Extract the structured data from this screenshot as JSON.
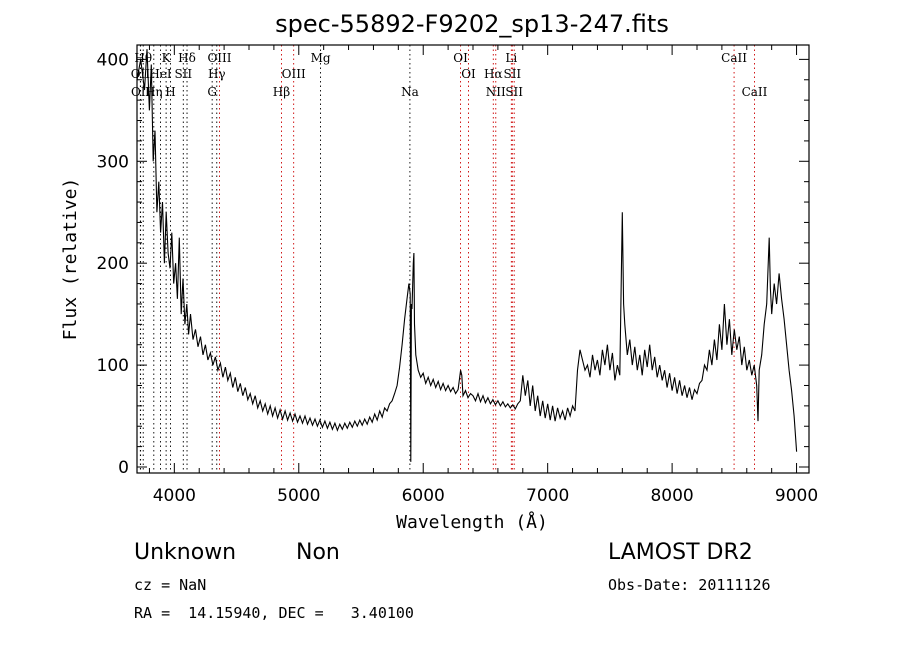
{
  "chart_data": {
    "type": "line",
    "title": "spec-55892-F9202_sp13-247.fits",
    "xlabel": "Wavelength (Å)",
    "ylabel": "Flux (relative)",
    "xlim": [
      3700,
      9100
    ],
    "ylim": [
      0,
      420
    ],
    "xticks": [
      4000,
      5000,
      6000,
      7000,
      8000,
      9000
    ],
    "yticks": [
      0,
      100,
      200,
      300,
      400
    ],
    "grid": false,
    "series": [
      {
        "values_format": "wavelength (Angstrom), relative flux",
        "points": [
          [
            3700,
            380
          ],
          [
            3730,
            400
          ],
          [
            3760,
            370
          ],
          [
            3780,
            410
          ],
          [
            3800,
            350
          ],
          [
            3815,
            395
          ],
          [
            3830,
            300
          ],
          [
            3845,
            330
          ],
          [
            3860,
            250
          ],
          [
            3875,
            280
          ],
          [
            3890,
            230
          ],
          [
            3905,
            260
          ],
          [
            3920,
            200
          ],
          [
            3935,
            250
          ],
          [
            3950,
            210
          ],
          [
            3965,
            195
          ],
          [
            3980,
            230
          ],
          [
            3995,
            180
          ],
          [
            4010,
            200
          ],
          [
            4025,
            165
          ],
          [
            4040,
            225
          ],
          [
            4055,
            150
          ],
          [
            4070,
            185
          ],
          [
            4085,
            140
          ],
          [
            4100,
            160
          ],
          [
            4115,
            130
          ],
          [
            4130,
            150
          ],
          [
            4150,
            125
          ],
          [
            4170,
            135
          ],
          [
            4190,
            118
          ],
          [
            4210,
            128
          ],
          [
            4230,
            110
          ],
          [
            4250,
            120
          ],
          [
            4270,
            105
          ],
          [
            4290,
            112
          ],
          [
            4310,
            100
          ],
          [
            4330,
            108
          ],
          [
            4350,
            95
          ],
          [
            4370,
            102
          ],
          [
            4390,
            88
          ],
          [
            4410,
            98
          ],
          [
            4430,
            85
          ],
          [
            4450,
            92
          ],
          [
            4470,
            78
          ],
          [
            4490,
            88
          ],
          [
            4510,
            74
          ],
          [
            4530,
            82
          ],
          [
            4550,
            70
          ],
          [
            4570,
            78
          ],
          [
            4590,
            66
          ],
          [
            4610,
            72
          ],
          [
            4630,
            62
          ],
          [
            4650,
            70
          ],
          [
            4670,
            58
          ],
          [
            4690,
            65
          ],
          [
            4710,
            55
          ],
          [
            4730,
            62
          ],
          [
            4750,
            52
          ],
          [
            4770,
            60
          ],
          [
            4790,
            50
          ],
          [
            4810,
            58
          ],
          [
            4830,
            48
          ],
          [
            4850,
            56
          ],
          [
            4870,
            47
          ],
          [
            4890,
            55
          ],
          [
            4910,
            46
          ],
          [
            4930,
            53
          ],
          [
            4950,
            45
          ],
          [
            4970,
            52
          ],
          [
            4990,
            44
          ],
          [
            5010,
            50
          ],
          [
            5030,
            43
          ],
          [
            5050,
            50
          ],
          [
            5070,
            42
          ],
          [
            5090,
            48
          ],
          [
            5110,
            41
          ],
          [
            5130,
            47
          ],
          [
            5150,
            40
          ],
          [
            5170,
            46
          ],
          [
            5190,
            39
          ],
          [
            5210,
            45
          ],
          [
            5230,
            38
          ],
          [
            5250,
            44
          ],
          [
            5270,
            37
          ],
          [
            5290,
            43
          ],
          [
            5310,
            36
          ],
          [
            5330,
            42
          ],
          [
            5350,
            37
          ],
          [
            5370,
            43
          ],
          [
            5390,
            38
          ],
          [
            5410,
            44
          ],
          [
            5430,
            39
          ],
          [
            5450,
            45
          ],
          [
            5470,
            40
          ],
          [
            5490,
            46
          ],
          [
            5510,
            41
          ],
          [
            5530,
            47
          ],
          [
            5550,
            42
          ],
          [
            5570,
            49
          ],
          [
            5590,
            44
          ],
          [
            5610,
            52
          ],
          [
            5630,
            46
          ],
          [
            5650,
            55
          ],
          [
            5670,
            49
          ],
          [
            5690,
            58
          ],
          [
            5710,
            55
          ],
          [
            5730,
            62
          ],
          [
            5750,
            65
          ],
          [
            5770,
            72
          ],
          [
            5790,
            80
          ],
          [
            5810,
            98
          ],
          [
            5830,
            120
          ],
          [
            5850,
            145
          ],
          [
            5870,
            165
          ],
          [
            5885,
            180
          ],
          [
            5895,
            170
          ],
          [
            5900,
            5
          ],
          [
            5905,
            160
          ],
          [
            5910,
            155
          ],
          [
            5920,
            200
          ],
          [
            5925,
            210
          ],
          [
            5930,
            140
          ],
          [
            5940,
            110
          ],
          [
            5960,
            95
          ],
          [
            5980,
            88
          ],
          [
            6000,
            92
          ],
          [
            6020,
            82
          ],
          [
            6040,
            88
          ],
          [
            6060,
            80
          ],
          [
            6080,
            86
          ],
          [
            6100,
            78
          ],
          [
            6120,
            84
          ],
          [
            6140,
            76
          ],
          [
            6160,
            82
          ],
          [
            6180,
            75
          ],
          [
            6200,
            80
          ],
          [
            6220,
            74
          ],
          [
            6240,
            78
          ],
          [
            6260,
            72
          ],
          [
            6280,
            76
          ],
          [
            6300,
            95
          ],
          [
            6310,
            90
          ],
          [
            6320,
            70
          ],
          [
            6340,
            75
          ],
          [
            6360,
            68
          ],
          [
            6380,
            72
          ],
          [
            6400,
            70
          ],
          [
            6420,
            65
          ],
          [
            6440,
            72
          ],
          [
            6460,
            64
          ],
          [
            6480,
            70
          ],
          [
            6500,
            63
          ],
          [
            6520,
            68
          ],
          [
            6540,
            62
          ],
          [
            6560,
            66
          ],
          [
            6580,
            61
          ],
          [
            6600,
            65
          ],
          [
            6620,
            60
          ],
          [
            6640,
            64
          ],
          [
            6660,
            59
          ],
          [
            6680,
            62
          ],
          [
            6700,
            58
          ],
          [
            6720,
            61
          ],
          [
            6740,
            57
          ],
          [
            6760,
            62
          ],
          [
            6780,
            65
          ],
          [
            6800,
            90
          ],
          [
            6820,
            70
          ],
          [
            6840,
            85
          ],
          [
            6860,
            60
          ],
          [
            6880,
            80
          ],
          [
            6900,
            55
          ],
          [
            6920,
            70
          ],
          [
            6940,
            50
          ],
          [
            6960,
            65
          ],
          [
            6980,
            48
          ],
          [
            7000,
            62
          ],
          [
            7020,
            46
          ],
          [
            7040,
            60
          ],
          [
            7060,
            45
          ],
          [
            7080,
            58
          ],
          [
            7100,
            48
          ],
          [
            7120,
            55
          ],
          [
            7140,
            46
          ],
          [
            7160,
            58
          ],
          [
            7180,
            50
          ],
          [
            7200,
            60
          ],
          [
            7220,
            55
          ],
          [
            7240,
            95
          ],
          [
            7260,
            115
          ],
          [
            7280,
            105
          ],
          [
            7300,
            95
          ],
          [
            7320,
            100
          ],
          [
            7340,
            88
          ],
          [
            7360,
            110
          ],
          [
            7380,
            95
          ],
          [
            7400,
            105
          ],
          [
            7420,
            90
          ],
          [
            7440,
            115
          ],
          [
            7460,
            100
          ],
          [
            7480,
            120
          ],
          [
            7500,
            95
          ],
          [
            7520,
            112
          ],
          [
            7540,
            85
          ],
          [
            7560,
            100
          ],
          [
            7580,
            90
          ],
          [
            7600,
            250
          ],
          [
            7610,
            160
          ],
          [
            7620,
            140
          ],
          [
            7640,
            110
          ],
          [
            7660,
            125
          ],
          [
            7680,
            100
          ],
          [
            7700,
            118
          ],
          [
            7720,
            95
          ],
          [
            7740,
            110
          ],
          [
            7760,
            90
          ],
          [
            7780,
            115
          ],
          [
            7800,
            98
          ],
          [
            7820,
            120
          ],
          [
            7840,
            95
          ],
          [
            7860,
            108
          ],
          [
            7880,
            88
          ],
          [
            7900,
            100
          ],
          [
            7920,
            85
          ],
          [
            7940,
            95
          ],
          [
            7960,
            78
          ],
          [
            7980,
            92
          ],
          [
            8000,
            75
          ],
          [
            8020,
            88
          ],
          [
            8040,
            72
          ],
          [
            8060,
            85
          ],
          [
            8080,
            70
          ],
          [
            8100,
            80
          ],
          [
            8120,
            68
          ],
          [
            8140,
            78
          ],
          [
            8160,
            66
          ],
          [
            8180,
            76
          ],
          [
            8200,
            72
          ],
          [
            8220,
            82
          ],
          [
            8240,
            85
          ],
          [
            8260,
            100
          ],
          [
            8280,
            95
          ],
          [
            8300,
            115
          ],
          [
            8320,
            100
          ],
          [
            8340,
            125
          ],
          [
            8360,
            105
          ],
          [
            8380,
            140
          ],
          [
            8400,
            115
          ],
          [
            8420,
            160
          ],
          [
            8440,
            120
          ],
          [
            8460,
            145
          ],
          [
            8480,
            110
          ],
          [
            8500,
            135
          ],
          [
            8520,
            115
          ],
          [
            8540,
            128
          ],
          [
            8560,
            100
          ],
          [
            8580,
            118
          ],
          [
            8600,
            95
          ],
          [
            8620,
            105
          ],
          [
            8640,
            90
          ],
          [
            8660,
            100
          ],
          [
            8680,
            80
          ],
          [
            8690,
            45
          ],
          [
            8700,
            95
          ],
          [
            8720,
            110
          ],
          [
            8740,
            140
          ],
          [
            8760,
            160
          ],
          [
            8780,
            225
          ],
          [
            8790,
            175
          ],
          [
            8800,
            150
          ],
          [
            8820,
            180
          ],
          [
            8840,
            160
          ],
          [
            8860,
            190
          ],
          [
            8880,
            165
          ],
          [
            8900,
            145
          ],
          [
            8920,
            120
          ],
          [
            8940,
            95
          ],
          [
            8960,
            75
          ],
          [
            8980,
            50
          ],
          [
            9000,
            15
          ]
        ]
      }
    ],
    "spectral_lines": [
      {
        "label": "OII",
        "wavelength": 3727,
        "row": 2
      },
      {
        "label": "Hθ",
        "wavelength": 3750,
        "row": 1
      },
      {
        "label": "OII",
        "wavelength": 3729,
        "row": 3
      },
      {
        "label": "Hη",
        "wavelength": 3835,
        "row": 3
      },
      {
        "label": "HeI",
        "wavelength": 3889,
        "row": 2
      },
      {
        "label": "K",
        "wavelength": 3934,
        "row": 1
      },
      {
        "label": "H",
        "wavelength": 3969,
        "row": 3
      },
      {
        "label": "SII",
        "wavelength": 4072,
        "row": 2
      },
      {
        "label": "Hδ",
        "wavelength": 4102,
        "row": 1
      },
      {
        "label": "OIII",
        "wavelength": 4363,
        "row": 1
      },
      {
        "label": "Hγ",
        "wavelength": 4341,
        "row": 2
      },
      {
        "label": "G",
        "wavelength": 4304,
        "row": 3
      },
      {
        "label": "Hβ",
        "wavelength": 4861,
        "row": 3
      },
      {
        "label": "OIII",
        "wavelength": 4959,
        "row": 2
      },
      {
        "label": "Mg",
        "wavelength": 5175,
        "row": 1
      },
      {
        "label": "Na",
        "wavelength": 5893,
        "row": 3
      },
      {
        "label": "OI",
        "wavelength": 6300,
        "row": 1
      },
      {
        "label": "OI",
        "wavelength": 6364,
        "row": 2
      },
      {
        "label": "Hα",
        "wavelength": 6563,
        "row": 2
      },
      {
        "label": "NII",
        "wavelength": 6583,
        "row": 3
      },
      {
        "label": "Li",
        "wavelength": 6708,
        "row": 1
      },
      {
        "label": "SII",
        "wavelength": 6716,
        "row": 2
      },
      {
        "label": "SII",
        "wavelength": 6731,
        "row": 3
      },
      {
        "label": "CaII",
        "wavelength": 8498,
        "row": 1
      },
      {
        "label": "CaII",
        "wavelength": 8662,
        "row": 3
      }
    ]
  },
  "info": {
    "class": "Unknown",
    "subclass": "Non",
    "survey": "LAMOST DR2",
    "cz": "cz = NaN",
    "obs_date": "Obs-Date: 20111126",
    "coords": "RA =  14.15940, DEC =   3.40100"
  },
  "colors": {
    "spectrum": "#000000",
    "emission_marker": "#cc0000",
    "absorption_marker": "#000000"
  }
}
